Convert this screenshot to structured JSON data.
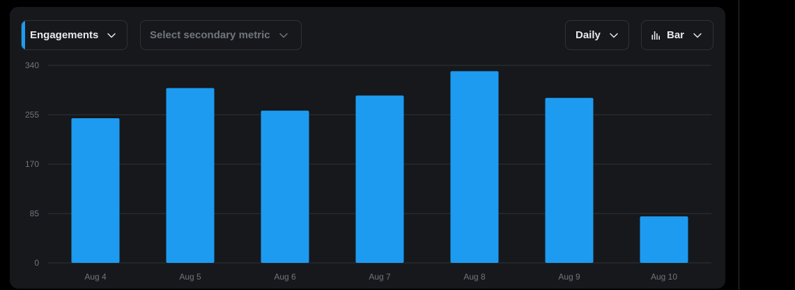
{
  "controls": {
    "primary_metric": "Engagements",
    "secondary_metric_placeholder": "Select secondary metric",
    "interval": "Daily",
    "chart_type": "Bar"
  },
  "colors": {
    "bar": "#1d9bf0",
    "accent": "#1d9bf0",
    "grid": "#2f3336",
    "tick_text": "#71767b",
    "card_bg": "#16181c"
  },
  "icons": {
    "chevron": "chevron-down-icon",
    "chart_type": "bar-chart-icon"
  },
  "chart_data": {
    "type": "bar",
    "categories": [
      "Aug 4",
      "Aug 5",
      "Aug 6",
      "Aug 7",
      "Aug 8",
      "Aug 9",
      "Aug 10"
    ],
    "series": [
      {
        "values": [
          249,
          301,
          262,
          288,
          330,
          284,
          80
        ]
      }
    ],
    "title": "",
    "xlabel": "",
    "ylabel": "",
    "ylim": [
      0,
      340
    ],
    "yticks": [
      0,
      85,
      170,
      255,
      340
    ],
    "grid": true,
    "legend": "none"
  }
}
